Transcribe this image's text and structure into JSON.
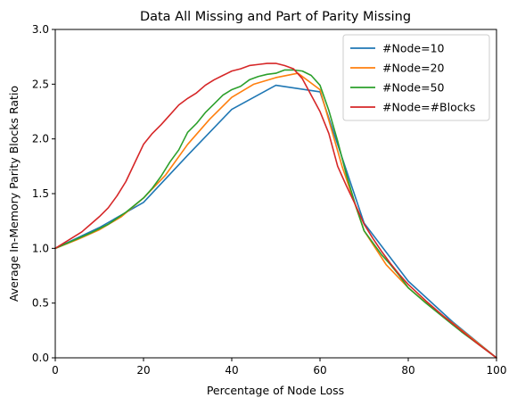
{
  "chart_data": {
    "type": "line",
    "title": "Data All Missing and Part of Parity Missing",
    "xlabel": "Percentage of Node Loss",
    "ylabel": "Average In-Memory Parity Blocks Ratio",
    "xlim": [
      0,
      100
    ],
    "ylim": [
      0,
      3.0
    ],
    "xticks": [
      "0",
      "20",
      "40",
      "60",
      "80",
      "100"
    ],
    "yticks": [
      "0.0",
      "0.5",
      "1.0",
      "1.5",
      "2.0",
      "2.5",
      "3.0"
    ],
    "grid": false,
    "legend_position": "top-right",
    "series": [
      {
        "name": "#Node=10",
        "color": "#1f77b4",
        "points": [
          [
            0,
            1.0
          ],
          [
            10,
            1.19
          ],
          [
            20,
            1.42
          ],
          [
            30,
            1.85
          ],
          [
            40,
            2.27
          ],
          [
            50,
            2.49
          ],
          [
            60,
            2.43
          ],
          [
            70,
            1.23
          ],
          [
            80,
            0.7
          ],
          [
            90,
            0.33
          ],
          [
            100,
            0.0
          ]
        ]
      },
      {
        "name": "#Node=20",
        "color": "#ff7f0e",
        "points": [
          [
            0,
            1.0
          ],
          [
            5,
            1.08
          ],
          [
            10,
            1.17
          ],
          [
            15,
            1.29
          ],
          [
            20,
            1.46
          ],
          [
            25,
            1.67
          ],
          [
            30,
            1.95
          ],
          [
            35,
            2.18
          ],
          [
            40,
            2.38
          ],
          [
            45,
            2.5
          ],
          [
            50,
            2.56
          ],
          [
            55,
            2.6
          ],
          [
            60,
            2.45
          ],
          [
            65,
            1.75
          ],
          [
            70,
            1.16
          ],
          [
            75,
            0.85
          ],
          [
            80,
            0.64
          ],
          [
            85,
            0.47
          ],
          [
            90,
            0.32
          ],
          [
            95,
            0.16
          ],
          [
            100,
            0.0
          ]
        ]
      },
      {
        "name": "#Node=50",
        "color": "#2ca02c",
        "points": [
          [
            0,
            1.0
          ],
          [
            4,
            1.07
          ],
          [
            8,
            1.14
          ],
          [
            12,
            1.22
          ],
          [
            16,
            1.33
          ],
          [
            20,
            1.46
          ],
          [
            22,
            1.55
          ],
          [
            24,
            1.66
          ],
          [
            26,
            1.79
          ],
          [
            28,
            1.9
          ],
          [
            30,
            2.06
          ],
          [
            32,
            2.14
          ],
          [
            34,
            2.24
          ],
          [
            36,
            2.32
          ],
          [
            38,
            2.4
          ],
          [
            40,
            2.45
          ],
          [
            42,
            2.48
          ],
          [
            44,
            2.54
          ],
          [
            46,
            2.57
          ],
          [
            48,
            2.59
          ],
          [
            50,
            2.6
          ],
          [
            52,
            2.63
          ],
          [
            54,
            2.63
          ],
          [
            56,
            2.62
          ],
          [
            58,
            2.58
          ],
          [
            60,
            2.49
          ],
          [
            62,
            2.26
          ],
          [
            64,
            1.98
          ],
          [
            66,
            1.67
          ],
          [
            68,
            1.4
          ],
          [
            70,
            1.16
          ],
          [
            72,
            1.05
          ],
          [
            74,
            0.94
          ],
          [
            76,
            0.85
          ],
          [
            78,
            0.75
          ],
          [
            80,
            0.64
          ],
          [
            84,
            0.5
          ],
          [
            88,
            0.37
          ],
          [
            92,
            0.24
          ],
          [
            96,
            0.12
          ],
          [
            100,
            0.0
          ]
        ]
      },
      {
        "name": "#Node=#Blocks",
        "color": "#d62728",
        "points": [
          [
            0,
            1.0
          ],
          [
            2,
            1.05
          ],
          [
            4,
            1.1
          ],
          [
            6,
            1.15
          ],
          [
            8,
            1.22
          ],
          [
            10,
            1.29
          ],
          [
            12,
            1.37
          ],
          [
            14,
            1.48
          ],
          [
            16,
            1.61
          ],
          [
            18,
            1.78
          ],
          [
            20,
            1.95
          ],
          [
            22,
            2.05
          ],
          [
            24,
            2.13
          ],
          [
            26,
            2.22
          ],
          [
            28,
            2.31
          ],
          [
            30,
            2.37
          ],
          [
            32,
            2.42
          ],
          [
            34,
            2.49
          ],
          [
            36,
            2.54
          ],
          [
            38,
            2.58
          ],
          [
            40,
            2.62
          ],
          [
            42,
            2.64
          ],
          [
            44,
            2.67
          ],
          [
            46,
            2.68
          ],
          [
            48,
            2.69
          ],
          [
            50,
            2.69
          ],
          [
            52,
            2.67
          ],
          [
            54,
            2.64
          ],
          [
            56,
            2.55
          ],
          [
            58,
            2.4
          ],
          [
            60,
            2.25
          ],
          [
            62,
            2.05
          ],
          [
            64,
            1.75
          ],
          [
            66,
            1.57
          ],
          [
            68,
            1.4
          ],
          [
            70,
            1.22
          ],
          [
            72,
            1.09
          ],
          [
            74,
            0.97
          ],
          [
            76,
            0.86
          ],
          [
            78,
            0.76
          ],
          [
            80,
            0.67
          ],
          [
            84,
            0.52
          ],
          [
            88,
            0.38
          ],
          [
            92,
            0.25
          ],
          [
            96,
            0.12
          ],
          [
            100,
            0.0
          ]
        ]
      }
    ]
  }
}
